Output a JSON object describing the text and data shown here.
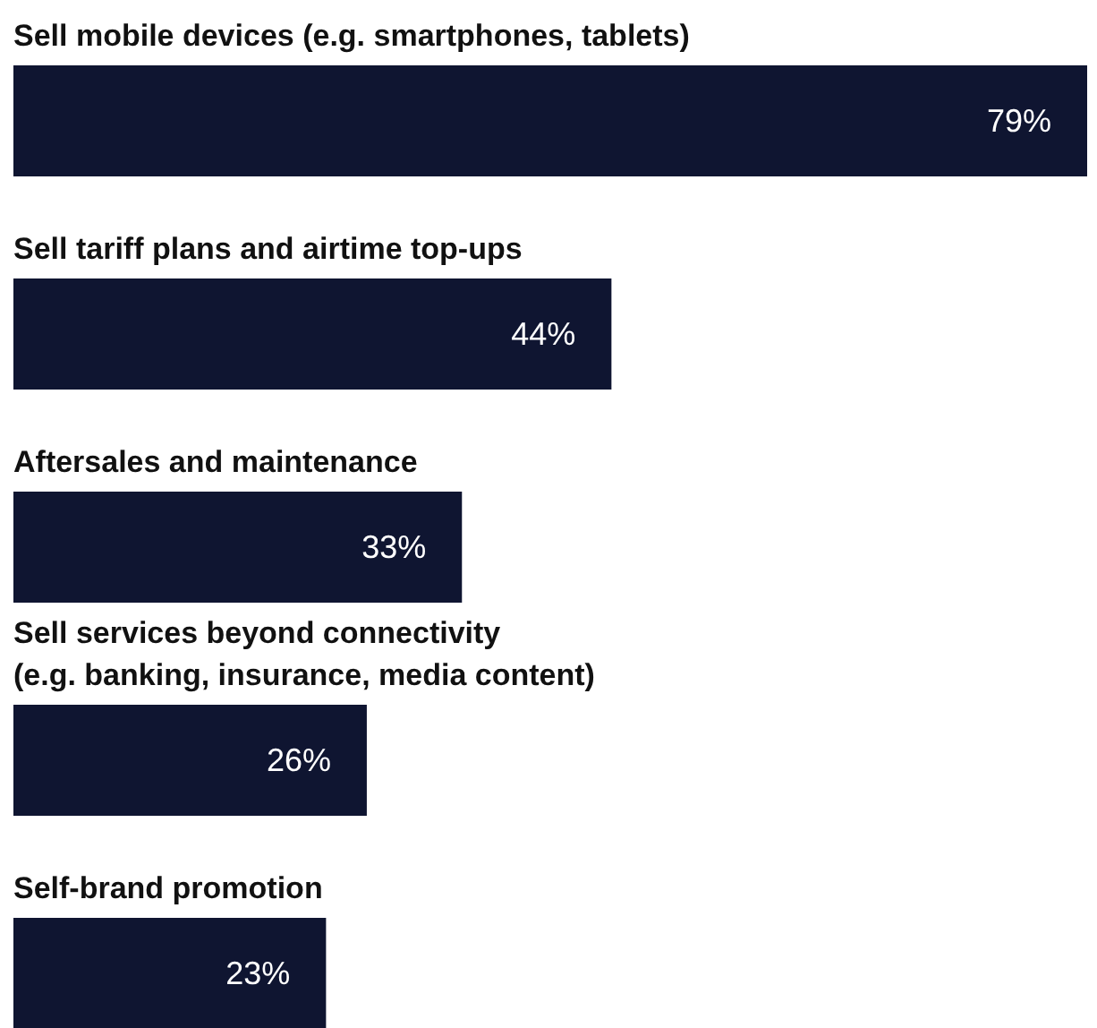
{
  "chart_data": {
    "type": "bar",
    "orientation": "horizontal",
    "categories": [
      "Sell mobile devices (e.g. smartphones, tablets)",
      "Sell tariff plans and airtime top-ups",
      "Aftersales and maintenance",
      "Sell services beyond connectivity\n(e.g. banking, insurance, media content)",
      "Self-brand promotion"
    ],
    "values": [
      79,
      44,
      33,
      26,
      23
    ],
    "value_labels": [
      "79%",
      "44%",
      "33%",
      "26%",
      "23%"
    ],
    "color": "#0f1531",
    "grid": false
  }
}
